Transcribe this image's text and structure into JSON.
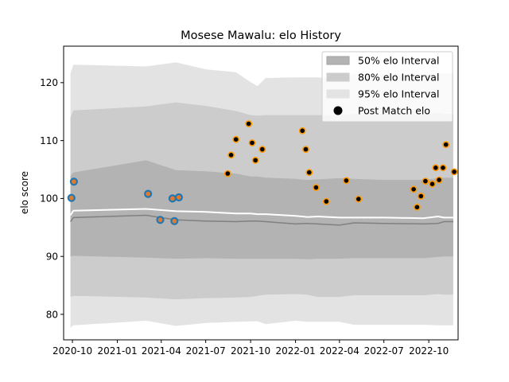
{
  "chart_data": {
    "type": "line",
    "title": "Mosese Mawalu: elo History",
    "xlabel": "",
    "ylabel": "elo score",
    "x_ticks": [
      "2020-10",
      "2021-01",
      "2021-04",
      "2021-07",
      "2021-10",
      "2022-01",
      "2022-04",
      "2022-07",
      "2022-10"
    ],
    "y_ticks": [
      80,
      90,
      100,
      110,
      120
    ],
    "ylim": [
      75.6,
      126.3
    ],
    "xlim": [
      "2020-09-13",
      "2022-11-30"
    ],
    "grid": false,
    "legend_placement": "top-right",
    "legend": [
      {
        "label": "50% elo Interval",
        "color": "#b3b3b3",
        "kind": "patch"
      },
      {
        "label": "80% elo Interval",
        "color": "#cccccc",
        "kind": "patch"
      },
      {
        "label": "95% elo Interval",
        "color": "#e3e3e3",
        "kind": "patch"
      },
      {
        "label": "Post Match elo",
        "color": "#000000",
        "kind": "marker"
      }
    ],
    "bands": {
      "x": [
        "2020-09-27",
        "2020-10-03",
        "2021-03-01",
        "2021-05-01",
        "2021-07-01",
        "2021-09-01",
        "2021-10-01",
        "2021-10-15",
        "2021-11-01",
        "2022-01-01",
        "2022-01-25",
        "2022-02-15",
        "2022-04-01",
        "2022-05-01",
        "2022-07-01",
        "2022-09-20",
        "2022-10-20",
        "2022-11-01",
        "2022-11-20"
      ],
      "median": [
        96.0,
        96.7,
        97.1,
        96.3,
        96.1,
        96.0,
        96.1,
        96.1,
        96.0,
        95.6,
        95.7,
        95.6,
        95.4,
        95.8,
        95.7,
        95.6,
        95.7,
        96.0,
        96.0
      ],
      "mean": [
        97.1,
        97.9,
        98.2,
        97.8,
        97.7,
        97.4,
        97.4,
        97.3,
        97.3,
        97.0,
        96.8,
        96.9,
        96.7,
        96.7,
        96.7,
        96.6,
        96.9,
        96.7,
        96.7
      ],
      "p50_low": [
        90.0,
        90.1,
        89.8,
        89.6,
        89.7,
        89.6,
        89.6,
        89.6,
        89.6,
        89.6,
        89.5,
        89.6,
        89.6,
        89.7,
        89.7,
        89.7,
        89.9,
        90.0,
        90.0
      ],
      "p50_high": [
        103.9,
        104.5,
        106.6,
        104.9,
        104.7,
        104.3,
        103.8,
        103.8,
        103.6,
        103.4,
        103.2,
        103.3,
        103.5,
        103.4,
        103.2,
        103.2,
        103.5,
        103.6,
        103.6
      ],
      "p80_low": [
        83.0,
        83.2,
        82.9,
        82.6,
        82.8,
        82.9,
        83.0,
        83.2,
        83.4,
        83.5,
        83.4,
        83.0,
        83.0,
        83.3,
        83.3,
        83.3,
        83.5,
        83.4,
        83.4
      ],
      "p80_high": [
        114.0,
        115.2,
        115.9,
        116.6,
        116.0,
        115.1,
        114.4,
        114.3,
        114.4,
        114.4,
        114.4,
        114.4,
        114.4,
        114.6,
        114.6,
        114.6,
        114.8,
        114.6,
        114.6
      ],
      "p95_low": [
        77.7,
        78.1,
        78.9,
        78.0,
        78.5,
        78.7,
        78.8,
        78.8,
        78.3,
        78.9,
        78.7,
        78.7,
        78.7,
        78.2,
        78.2,
        78.2,
        78.1,
        78.1,
        78.1
      ],
      "p95_high": [
        121.6,
        123.1,
        122.8,
        123.5,
        122.3,
        121.8,
        120.1,
        119.4,
        120.8,
        120.9,
        120.9,
        120.9,
        120.7,
        121.5,
        121.5,
        121.5,
        121.6,
        121.6,
        121.6
      ]
    },
    "series": [
      {
        "marker": "blue-dot",
        "points": [
          [
            "2020-09-29",
            100.1
          ],
          [
            "2020-10-04",
            102.9
          ],
          [
            "2021-03-05",
            100.8
          ],
          [
            "2021-03-30",
            96.3
          ],
          [
            "2021-04-24",
            100.0
          ],
          [
            "2021-04-28",
            96.1
          ],
          [
            "2021-05-07",
            100.2
          ]
        ]
      },
      {
        "marker": "black-dot-orange-edge",
        "points": [
          [
            "2021-08-15",
            104.3
          ],
          [
            "2021-08-22",
            107.5
          ],
          [
            "2021-09-01",
            110.2
          ],
          [
            "2021-09-27",
            112.9
          ],
          [
            "2021-10-04",
            109.6
          ],
          [
            "2021-10-11",
            106.6
          ],
          [
            "2021-10-25",
            108.5
          ],
          [
            "2022-01-15",
            111.7
          ],
          [
            "2022-01-22",
            108.5
          ],
          [
            "2022-01-29",
            104.5
          ],
          [
            "2022-02-12",
            101.9
          ],
          [
            "2022-03-05",
            99.5
          ],
          [
            "2022-04-15",
            103.1
          ],
          [
            "2022-05-10",
            99.9
          ],
          [
            "2022-08-31",
            101.6
          ],
          [
            "2022-09-07",
            98.5
          ],
          [
            "2022-09-15",
            100.4
          ],
          [
            "2022-09-24",
            103.0
          ],
          [
            "2022-10-08",
            102.5
          ],
          [
            "2022-10-15",
            105.3
          ],
          [
            "2022-10-22",
            103.2
          ],
          [
            "2022-10-30",
            105.3
          ],
          [
            "2022-11-05",
            109.3
          ],
          [
            "2022-11-22",
            104.6
          ]
        ]
      }
    ]
  }
}
